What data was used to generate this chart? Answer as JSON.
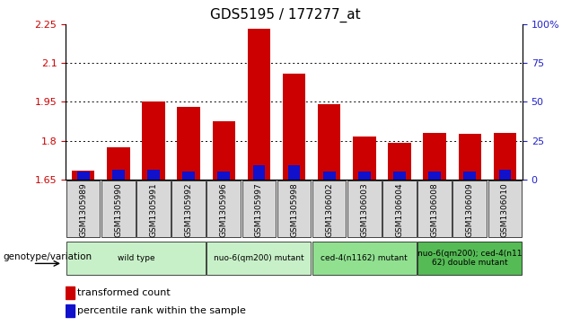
{
  "title": "GDS5195 / 177277_at",
  "samples": [
    "GSM1305989",
    "GSM1305990",
    "GSM1305991",
    "GSM1305992",
    "GSM1305996",
    "GSM1305997",
    "GSM1305998",
    "GSM1306002",
    "GSM1306003",
    "GSM1306004",
    "GSM1306008",
    "GSM1306009",
    "GSM1306010"
  ],
  "red_tops": [
    1.685,
    1.775,
    1.95,
    1.93,
    1.875,
    2.235,
    2.06,
    1.94,
    1.815,
    1.79,
    1.83,
    1.825,
    1.83
  ],
  "blue_percentiles": [
    10,
    12,
    12,
    10,
    10,
    18,
    18,
    10,
    10,
    10,
    10,
    10,
    12
  ],
  "ymin": 1.65,
  "ymax": 2.25,
  "yticks": [
    1.65,
    1.8,
    1.95,
    2.1,
    2.25
  ],
  "ytick_labels": [
    "1.65",
    "1.8",
    "1.95",
    "2.1",
    "2.25"
  ],
  "right_yticks_pct": [
    0,
    25,
    50,
    75,
    100
  ],
  "right_ytick_labels": [
    "0",
    "25",
    "50",
    "75",
    "100%"
  ],
  "grid_vals": [
    1.8,
    1.95,
    2.1
  ],
  "groups": [
    {
      "label": "wild type",
      "spans": [
        0,
        3
      ],
      "color": "#c8f0c8"
    },
    {
      "label": "nuo-6(qm200) mutant",
      "spans": [
        4,
        6
      ],
      "color": "#c8f0c8"
    },
    {
      "label": "ced-4(n1162) mutant",
      "spans": [
        7,
        9
      ],
      "color": "#90e090"
    },
    {
      "label": "nuo-6(qm200); ced-4(n11\n62) double mutant",
      "spans": [
        10,
        12
      ],
      "color": "#55bb55"
    }
  ],
  "bar_color": "#cc0000",
  "blue_color": "#1111cc",
  "bar_width": 0.65,
  "blue_bar_width": 0.35,
  "legend_red": "transformed count",
  "legend_blue": "percentile rank within the sample",
  "genotype_label": "genotype/variation",
  "plot_bg": "#ffffff",
  "sample_box_color": "#d8d8d8",
  "ylabel_color": "#cc0000",
  "right_ylabel_color": "#2222cc"
}
